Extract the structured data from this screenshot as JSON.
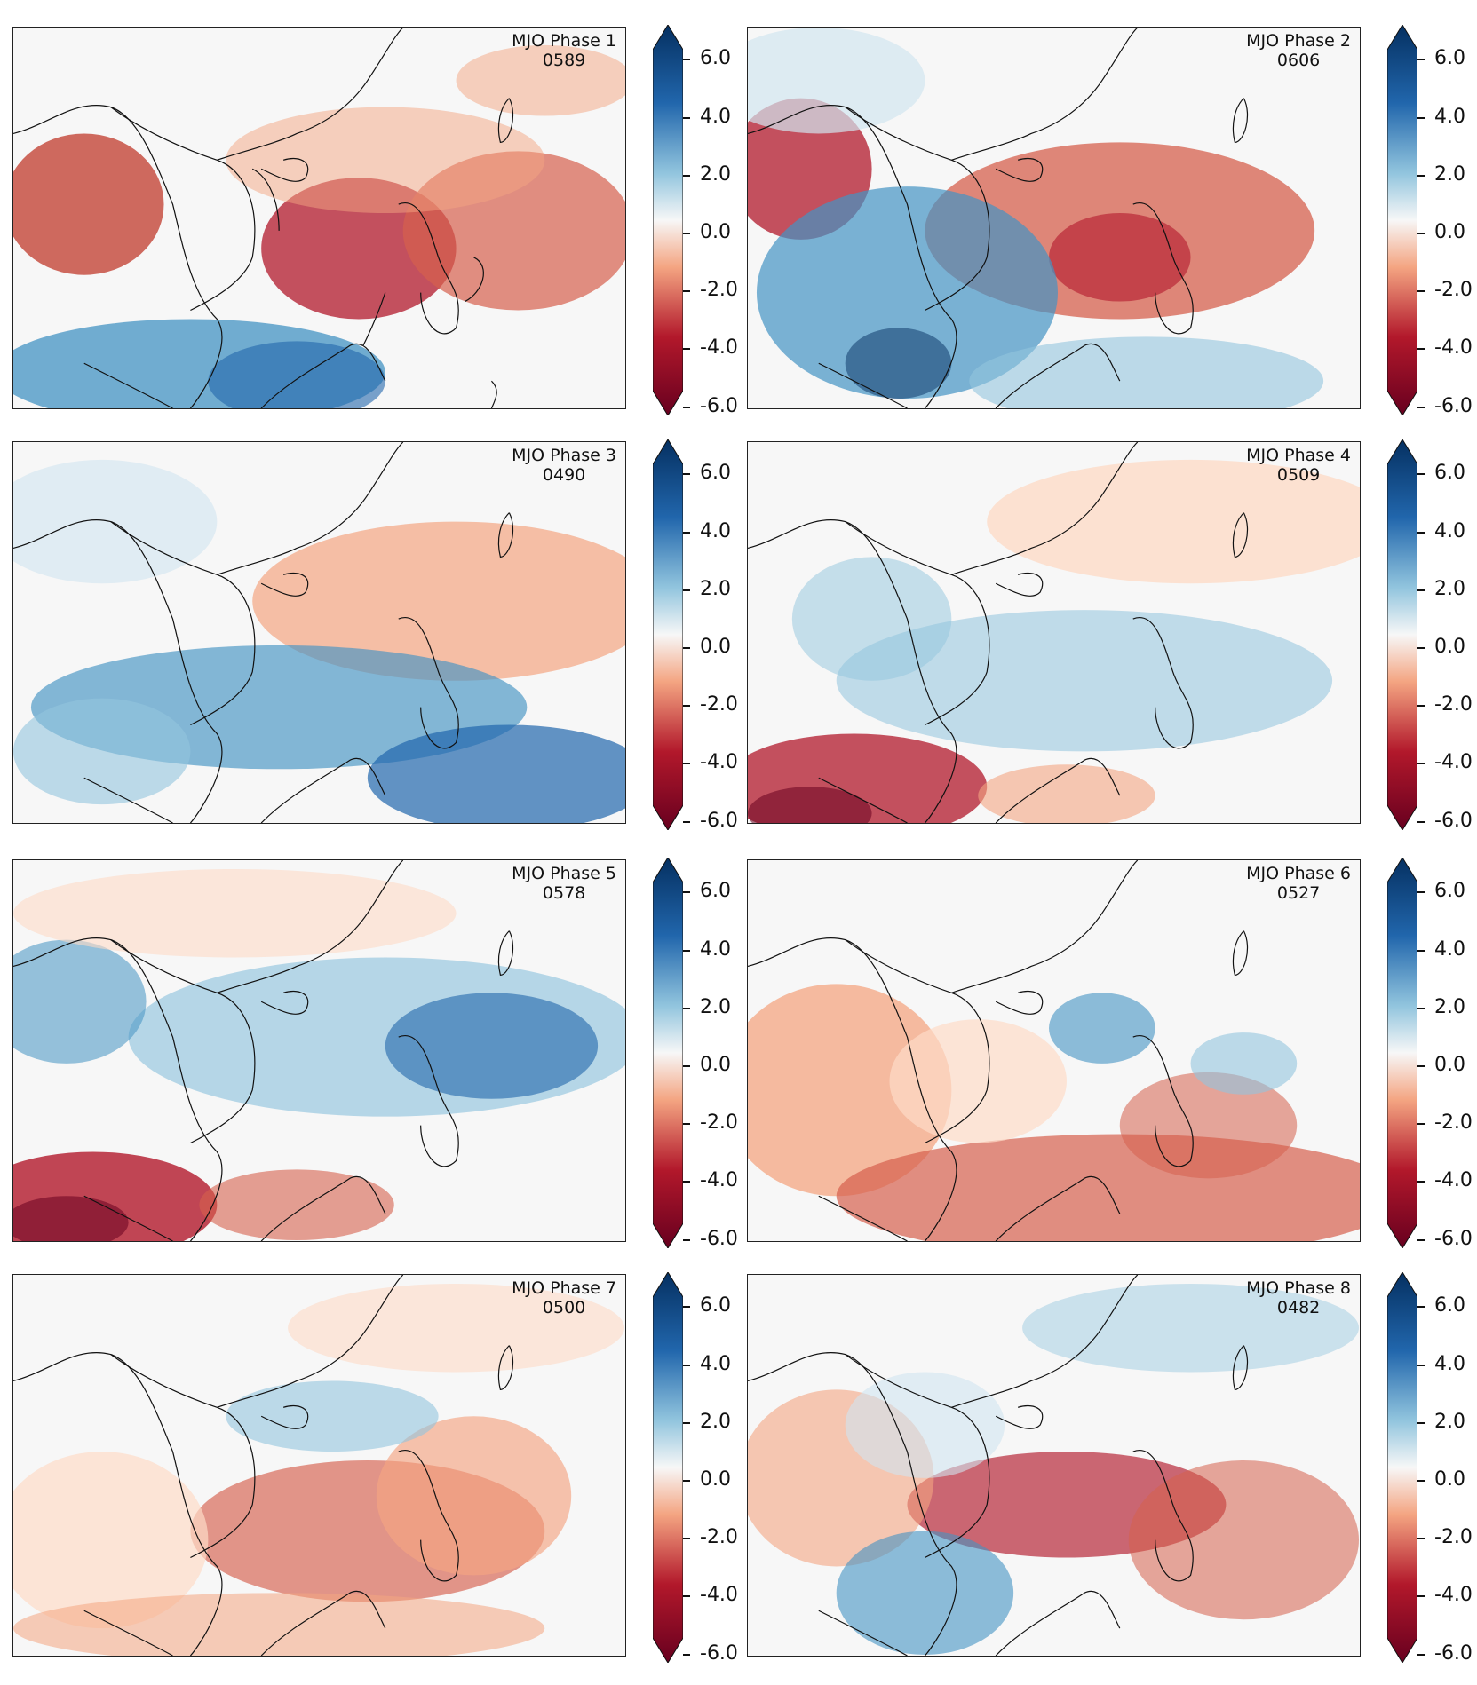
{
  "colorbar": {
    "ticks": [
      "6.0",
      "4.0",
      "2.0",
      "0.0",
      "-2.0",
      "-4.0",
      "-6.0"
    ],
    "min": -6.0,
    "max": 6.0,
    "extend": "both",
    "colormap": "RdBu",
    "colors": {
      "max": "#053061",
      "high": "#2166ac",
      "mid": "#f7f7f7",
      "low": "#b2182b",
      "min": "#67001f"
    }
  },
  "panels": [
    {
      "title": "MJO Phase 1",
      "count": "0589"
    },
    {
      "title": "MJO Phase 2",
      "count": "0606"
    },
    {
      "title": "MJO Phase 3",
      "count": "0490"
    },
    {
      "title": "MJO Phase 4",
      "count": "0509"
    },
    {
      "title": "MJO Phase 5",
      "count": "0578"
    },
    {
      "title": "MJO Phase 6",
      "count": "0527"
    },
    {
      "title": "MJO Phase 7",
      "count": "0500"
    },
    {
      "title": "MJO Phase 8",
      "count": "0482"
    }
  ]
}
